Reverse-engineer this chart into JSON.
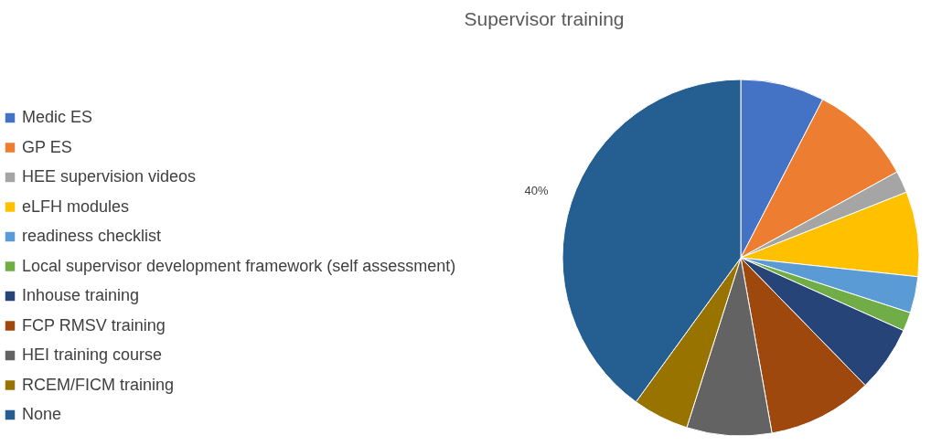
{
  "chart_data": {
    "type": "pie",
    "title": "Supervisor training",
    "categories": [
      "Medic ES",
      "GP ES",
      "HEE supervision videos",
      "eLFH modules",
      "readiness checklist",
      "Local supervisor development framework (self assessment)",
      "Inhouse training",
      "FCP RMSV training",
      "HEI training course",
      "RCEM/FICM training",
      "None"
    ],
    "values": [
      7.6,
      9.4,
      2,
      7.7,
      3.3,
      1.7,
      6,
      9.5,
      7.7,
      5.1,
      40
    ],
    "colors": [
      "#4472c4",
      "#ed7d31",
      "#a5a5a5",
      "#ffc000",
      "#5b9bd5",
      "#70ad47",
      "#264478",
      "#9e480e",
      "#636363",
      "#997300",
      "#255e91"
    ],
    "value_labels": [
      null,
      null,
      null,
      null,
      null,
      null,
      null,
      null,
      null,
      null,
      "40%"
    ],
    "legend": "left"
  }
}
